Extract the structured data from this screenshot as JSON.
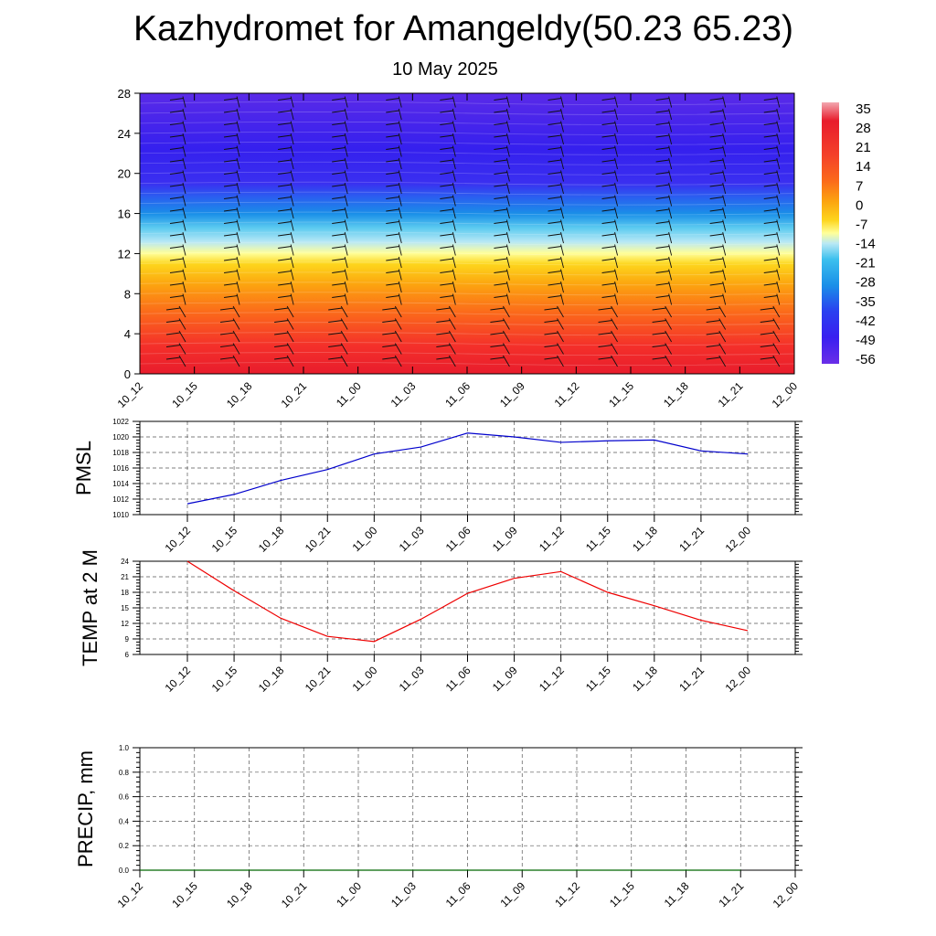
{
  "header": {
    "title": "Kazhydromet for Amangeldy(50.23 65.23)",
    "date": "10 May 2025"
  },
  "colorbar": {
    "labels": [
      "35",
      "28",
      "21",
      "14",
      "7",
      "0",
      "-7",
      "-14",
      "-21",
      "-28",
      "-35",
      "-42",
      "-49",
      "-56"
    ]
  },
  "chart_data": [
    {
      "type": "heatmap",
      "name": "upper-air cross-section",
      "x_labels": [
        "10_12",
        "10_15",
        "10_18",
        "10_21",
        "11_00",
        "11_03",
        "11_06",
        "11_09",
        "11_12",
        "11_15",
        "11_18",
        "11_21",
        "12_00"
      ],
      "y_ticks": [
        0,
        4,
        8,
        12,
        16,
        20,
        24,
        28
      ],
      "ylim": [
        0,
        28
      ],
      "color_scale": [
        "#f2a7b0",
        "#e81c2c",
        "#f4402a",
        "#fb6a1a",
        "#fca50f",
        "#fdd51c",
        "#ffff99",
        "#b8e8f5",
        "#3cc0ee",
        "#1a8fe8",
        "#2a3ff0",
        "#3a1ff0",
        "#6a2ee8"
      ],
      "value_range": [
        -56,
        35
      ]
    },
    {
      "type": "line",
      "ylabel": "PMSL",
      "x": [
        "10_12",
        "10_15",
        "10_18",
        "10_21",
        "11_00",
        "11_03",
        "11_06",
        "11_09",
        "11_12",
        "11_15",
        "11_18",
        "11_21",
        "12_00"
      ],
      "y_ticks": [
        1010,
        1012,
        1014,
        1016,
        1018,
        1020,
        1022
      ],
      "ylim": [
        1010,
        1022
      ],
      "color": "#0000cc",
      "values": [
        1011.4,
        1012.6,
        1014.4,
        1015.8,
        1017.8,
        1018.7,
        1020.5,
        1020.0,
        1019.3,
        1019.5,
        1019.6,
        1018.2,
        1017.8
      ]
    },
    {
      "type": "line",
      "ylabel": "TEMP at 2 M",
      "x": [
        "10_12",
        "10_15",
        "10_18",
        "10_21",
        "11_00",
        "11_03",
        "11_06",
        "11_09",
        "11_12",
        "11_15",
        "11_18",
        "11_21",
        "12_00"
      ],
      "y_ticks": [
        6,
        9,
        12,
        15,
        18,
        21,
        24
      ],
      "ylim": [
        6,
        24
      ],
      "color": "#ee0000",
      "values": [
        24.0,
        18.3,
        13.0,
        9.5,
        8.5,
        12.8,
        17.8,
        20.7,
        22.0,
        18.0,
        15.4,
        12.6,
        10.6
      ]
    },
    {
      "type": "line",
      "ylabel": "PRECIP, mm",
      "x_labels": [
        "10_12",
        "10_15",
        "10_18",
        "10_21",
        "11_00",
        "11_03",
        "11_06",
        "11_09",
        "11_12",
        "11_15",
        "11_18",
        "11_21",
        "12_00"
      ],
      "y_ticks": [
        "0.0",
        "0.2",
        "0.4",
        "0.6",
        "0.8",
        "1.0"
      ],
      "ylim": [
        0,
        1
      ],
      "color": "#006600",
      "values": [
        0,
        0,
        0,
        0,
        0,
        0,
        0,
        0,
        0,
        0,
        0,
        0
      ]
    }
  ]
}
